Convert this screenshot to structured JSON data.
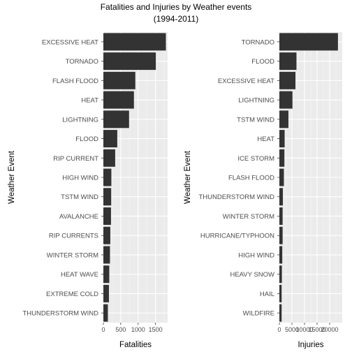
{
  "title": "Fatalities and Injuries by Weather events",
  "subtitle": "(1994-2011)",
  "colors": {
    "panel": "#ebebeb",
    "grid_major": "#ffffff",
    "grid_minor": "#f5f5f5",
    "bar": "#333333"
  },
  "chart_data": [
    {
      "type": "bar",
      "orientation": "horizontal",
      "xlabel": "Fatalities",
      "ylabel": "Weather Event",
      "xlim": [
        0,
        1850
      ],
      "xticks": [
        0,
        500,
        1000,
        1500
      ],
      "tick_labels": [
        "0",
        "500",
        "1000",
        "1500"
      ],
      "categories": [
        "EXCESSIVE HEAT",
        "TORNADO",
        "FLASH FLOOD",
        "HEAT",
        "LIGHTNING",
        "FLOOD",
        "RIP CURRENT",
        "HIGH WIND",
        "TSTM WIND",
        "AVALANCHE",
        "RIP CURRENTS",
        "WINTER STORM",
        "HEAT WAVE",
        "EXTREME COLD",
        "THUNDERSTORM WIND"
      ],
      "values": [
        1800,
        1510,
        920,
        880,
        740,
        400,
        340,
        230,
        225,
        220,
        200,
        190,
        170,
        160,
        130
      ]
    },
    {
      "type": "bar",
      "orientation": "horizontal",
      "xlabel": "Injuries",
      "ylabel": "Weather Event",
      "xlim": [
        0,
        25000
      ],
      "xticks": [
        0,
        5000,
        10000,
        15000,
        20000
      ],
      "tick_labels": [
        "0",
        "5000",
        "10000",
        "15000",
        "20000"
      ],
      "categories": [
        "TORNADO",
        "FLOOD",
        "EXCESSIVE HEAT",
        "LIGHTNING",
        "TSTM WIND",
        "HEAT",
        "ICE STORM",
        "FLASH FLOOD",
        "THUNDERSTORM WIND",
        "WINTER STORM",
        "HURRICANE/TYPHOON",
        "HIGH WIND",
        "HEAVY SNOW",
        "HAIL",
        "WILDFIRE"
      ],
      "values": [
        23300,
        6800,
        6400,
        5200,
        3600,
        2100,
        2000,
        1800,
        1400,
        1300,
        1300,
        1150,
        1000,
        900,
        900
      ]
    }
  ]
}
